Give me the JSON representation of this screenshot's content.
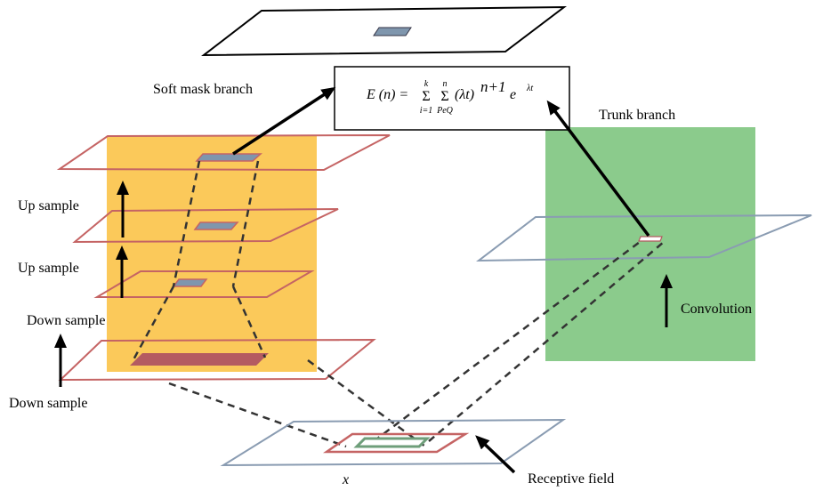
{
  "labels": {
    "soft_mask_branch": "Soft mask branch",
    "trunk_branch": "Trunk branch",
    "up_sample_1": "Up sample",
    "up_sample_2": "Up sample",
    "down_sample_1": "Down sample",
    "down_sample_2": "Down sample",
    "convolution": "Convolution",
    "receptive_field": "Receptive field",
    "input_x": "x"
  },
  "formula": {
    "lhs": "E (n) = ",
    "sum1_sym": "Σ",
    "sum1_upper": "k",
    "sum1_lower": "i=1",
    "sum2_sym": "Σ",
    "sum2_upper": "n",
    "sum2_lower": "PeQ",
    "term": "(λt)",
    "power": "n+1",
    "exp_base": " e",
    "exp_power": "λt"
  },
  "colors": {
    "soft_mask_bg": "#fbc95a",
    "trunk_bg": "#8bcb8c",
    "plane_red": "#c56464",
    "plane_blue": "#8a9cb2",
    "patch_blue": "#7f96ad",
    "patch_red": "#b45b61",
    "patch_green": "#6e9e7a"
  }
}
